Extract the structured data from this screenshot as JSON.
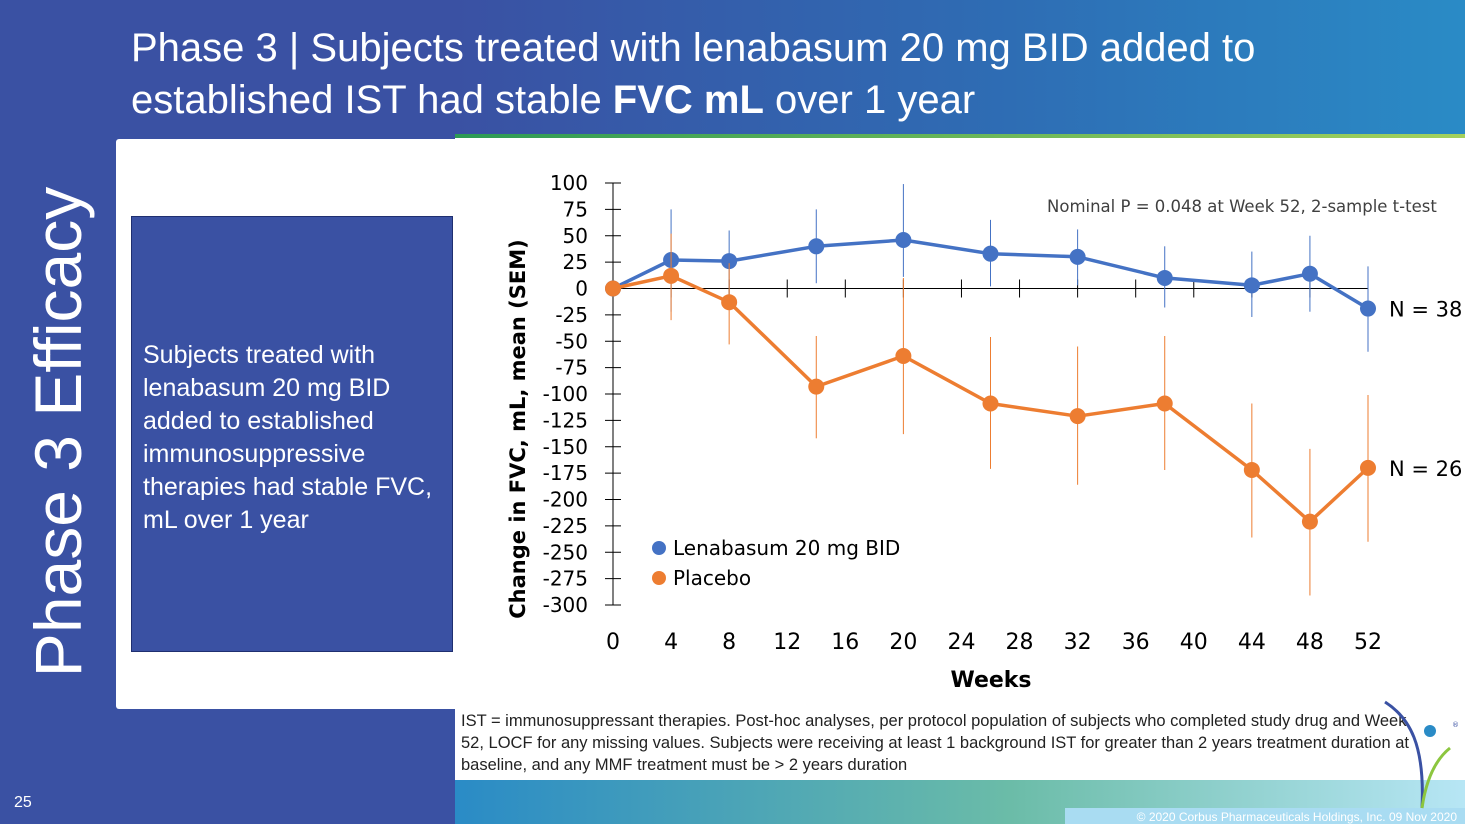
{
  "title": {
    "line1": "Phase 3  | Subjects treated with lenabasum 20 mg BID added to",
    "line2_pre": "established IST had stable ",
    "line2_bold": "FVC mL",
    "line2_post": " over 1 year"
  },
  "side_label": "Phase 3 Efficacy",
  "summary": "Subjects treated with lenabasum 20 mg BID added to established immunosuppressive therapies had stable FVC, mL over 1 year",
  "footnote": "IST = immunosuppressant therapies.  Post-hoc analyses, per protocol population of subjects who completed study drug and Week 52, LOCF for any missing values.  Subjects were receiving at least 1 background IST for greater than 2 years treatment duration at baseline, and any MMF treatment must be > 2 years duration",
  "page_number": "25",
  "copyright": "© 2020 Corbus Pharmaceuticals Holdings, Inc. 09 Nov 2020",
  "colors": {
    "brand_blue": "#3a51a3",
    "lenabasum": "#4472c4",
    "placebo": "#ed7d31"
  },
  "chart_data": {
    "type": "line",
    "xlabel": "Weeks",
    "ylabel": "Change in FVC, mL, mean (SEM)",
    "xlim": [
      0,
      52
    ],
    "ylim": [
      -300,
      100
    ],
    "x_ticks": [
      "0",
      "4",
      "8",
      "12",
      "16",
      "20",
      "24",
      "28",
      "32",
      "36",
      "40",
      "44",
      "48",
      "52"
    ],
    "y_ticks": [
      "100",
      "75",
      "50",
      "25",
      "0",
      "-25",
      "-50",
      "-75",
      "-100",
      "-125",
      "-150",
      "-175",
      "-200",
      "-225",
      "-250",
      "-275",
      "-300"
    ],
    "annotation": "Nominal P = 0.048 at Week 52, 2-sample t-test",
    "legend_position": "bottom-left",
    "series": [
      {
        "name": "Lenabasum 20 mg BID",
        "n_label": "N = 38",
        "color": "#4472c4",
        "x": [
          0,
          4,
          8,
          14,
          20,
          26,
          32,
          38,
          44,
          48,
          52
        ],
        "y": [
          0,
          27,
          26,
          40,
          46,
          33,
          30,
          10,
          3,
          14,
          -19
        ],
        "err_low": [
          0,
          -22,
          0,
          5,
          11,
          2,
          3,
          -18,
          -27,
          -22,
          -60
        ],
        "err_high": [
          0,
          75,
          55,
          75,
          99,
          65,
          56,
          40,
          35,
          50,
          21
        ]
      },
      {
        "name": "Placebo",
        "n_label": "N = 26",
        "color": "#ed7d31",
        "x": [
          0,
          4,
          8,
          14,
          20,
          26,
          32,
          38,
          44,
          48,
          52
        ],
        "y": [
          0,
          12,
          -13,
          -93,
          -64,
          -109,
          -121,
          -109,
          -172,
          -221,
          -170
        ],
        "err_low": [
          0,
          -30,
          -53,
          -142,
          -138,
          -171,
          -186,
          -172,
          -236,
          -291,
          -240
        ],
        "err_high": [
          0,
          52,
          24,
          -45,
          10,
          -46,
          -55,
          -45,
          -109,
          -152,
          -101
        ]
      }
    ]
  }
}
